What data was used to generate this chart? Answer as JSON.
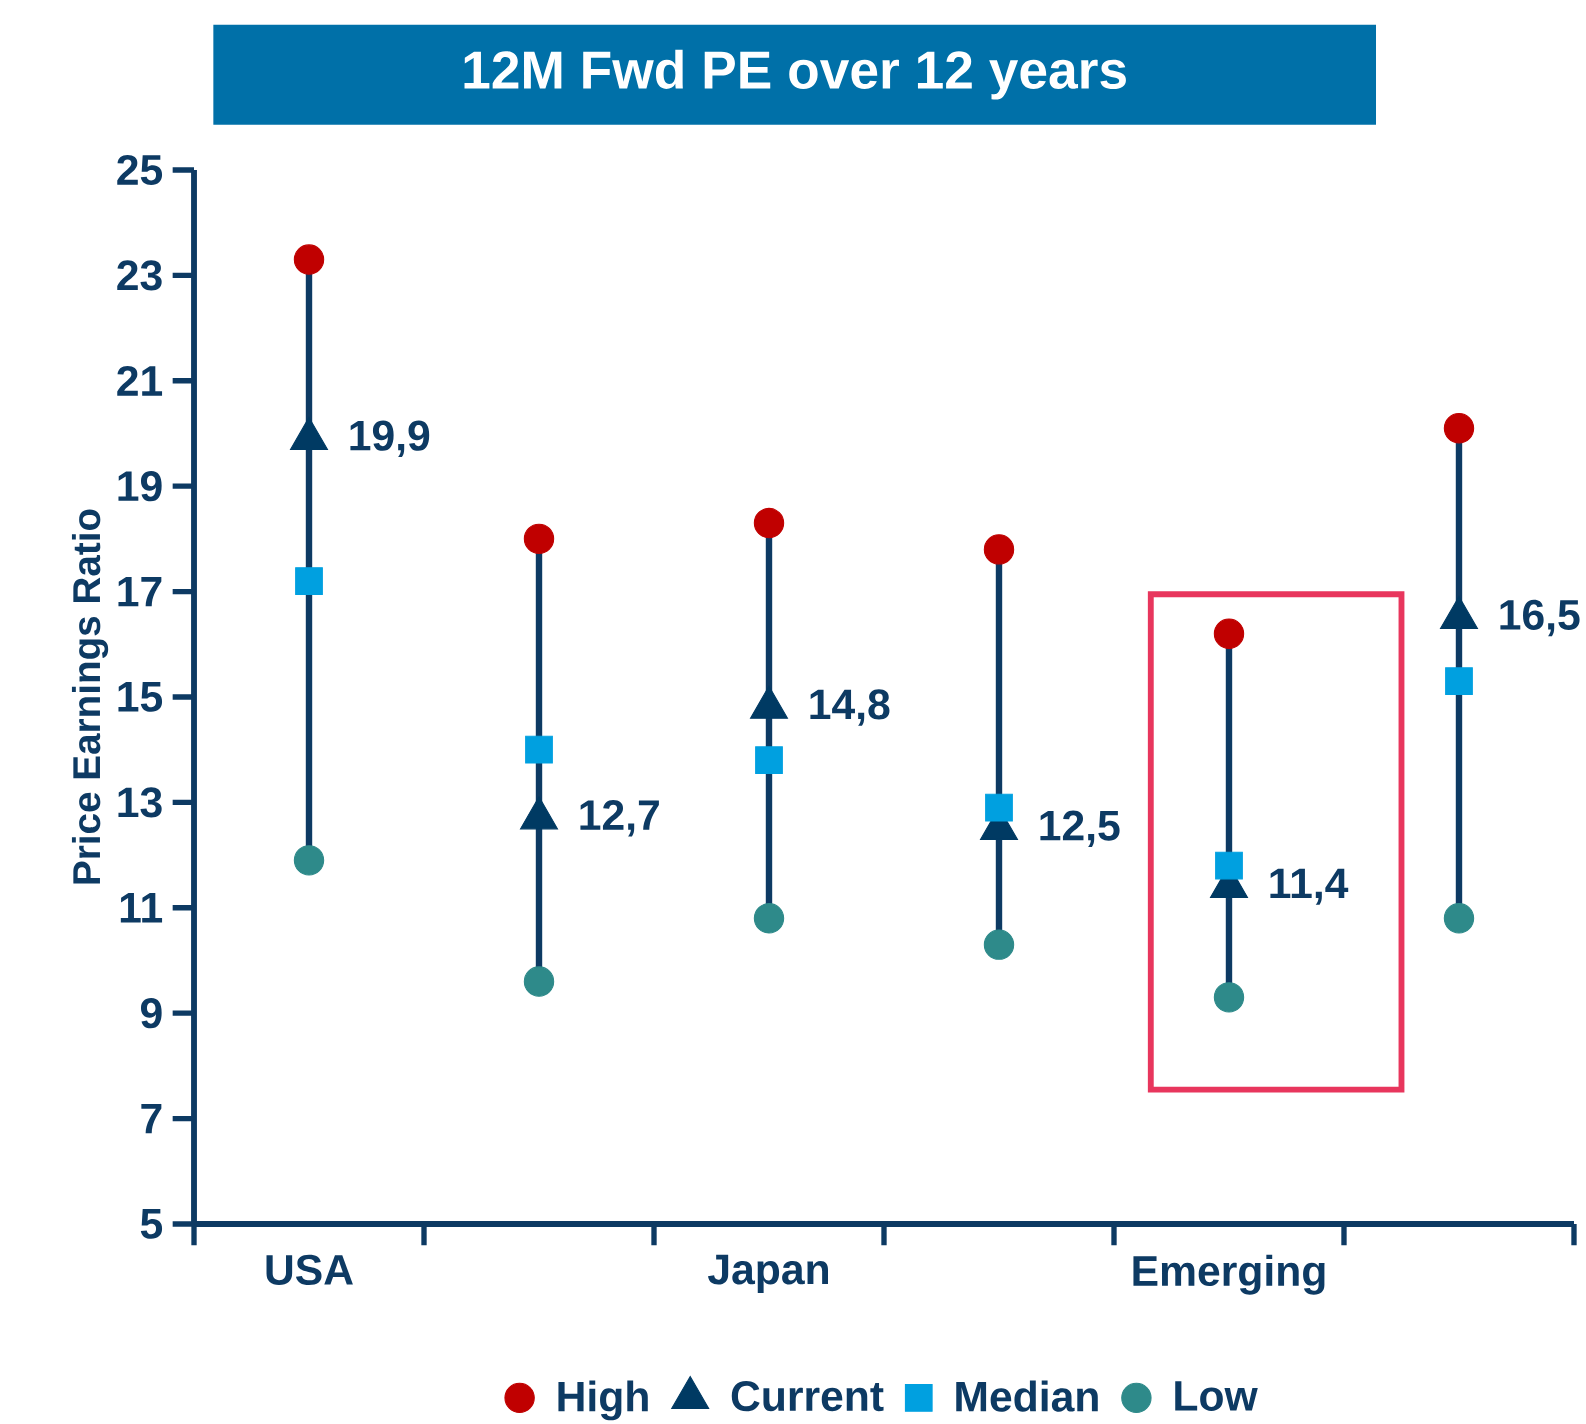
{
  "chart_data": {
    "type": "scatter",
    "title": "12M Fwd PE over 12 years",
    "ylabel": "Price Earnings Ratio",
    "categories": [
      "USA",
      null,
      "Japan",
      null,
      "Emerging",
      null
    ],
    "series": [
      {
        "name": "High",
        "color": "#c00000",
        "marker": "circle",
        "values": [
          23.3,
          18.0,
          18.3,
          17.8,
          16.2,
          20.1
        ]
      },
      {
        "name": "Current",
        "color": "#003a63",
        "marker": "triangle",
        "values": [
          19.9,
          12.7,
          14.8,
          12.5,
          11.4,
          16.5
        ],
        "value_labels": [
          "19,9",
          "12,7",
          "14,8",
          "12,5",
          "11,4",
          "16,5"
        ]
      },
      {
        "name": "Median",
        "color": "#00a0e0",
        "marker": "square",
        "values": [
          17.2,
          14.0,
          13.8,
          12.9,
          11.8,
          15.3
        ]
      },
      {
        "name": "Low",
        "color": "#2e8a8a",
        "marker": "circle",
        "values": [
          11.9,
          9.6,
          10.8,
          10.3,
          9.3,
          10.8
        ]
      }
    ],
    "ylim": [
      5,
      25
    ],
    "yticks": [
      5,
      7,
      9,
      11,
      13,
      15,
      17,
      19,
      21,
      23,
      25
    ],
    "legend": "bottom",
    "grid": false
  }
}
